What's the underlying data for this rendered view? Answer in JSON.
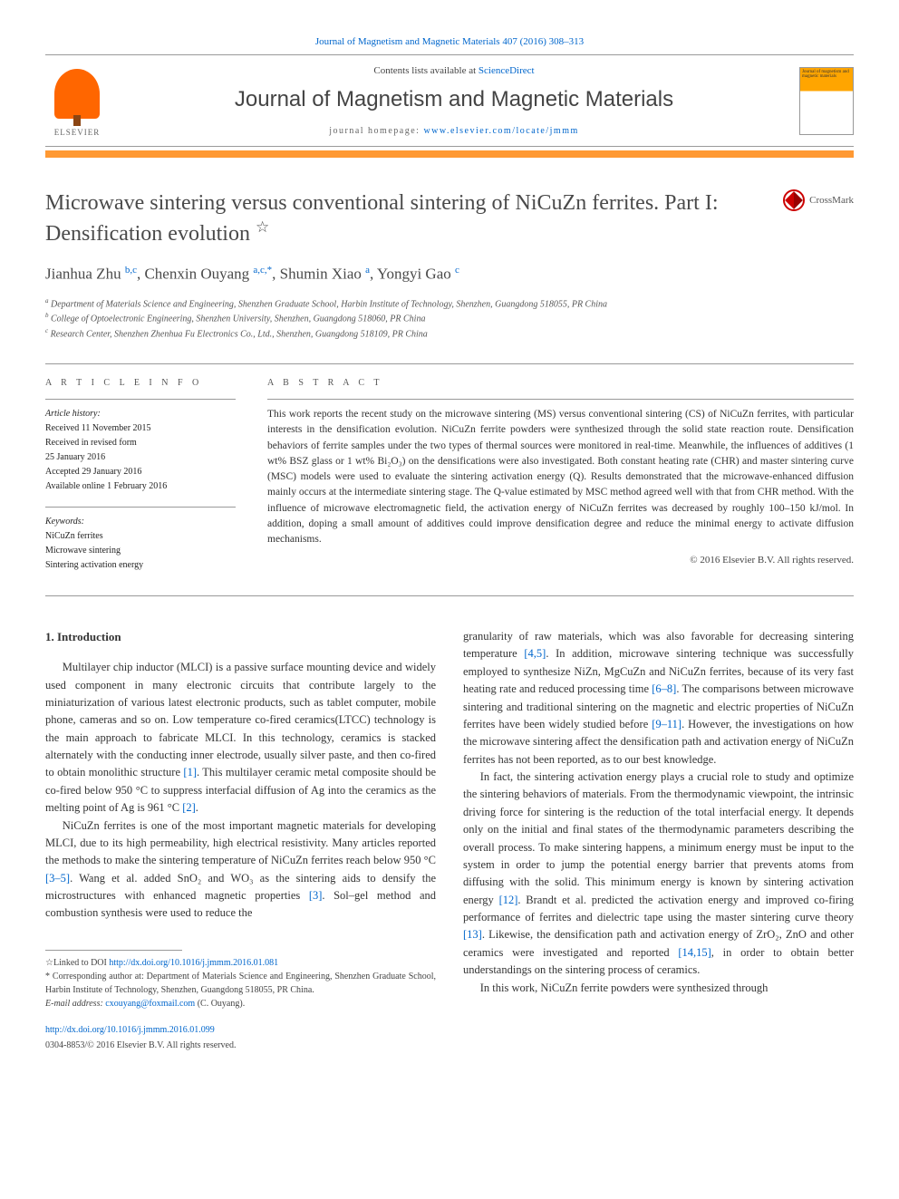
{
  "citation": "Journal of Magnetism and Magnetic Materials 407 (2016) 308–313",
  "header": {
    "contents_prefix": "Contents lists available at ",
    "contents_link": "ScienceDirect",
    "journal_name": "Journal of Magnetism and Magnetic Materials",
    "homepage_prefix": "journal homepage: ",
    "homepage_url": "www.elsevier.com/locate/jmmm",
    "elsevier_label": "ELSEVIER",
    "cover_text": "Journal of magnetism and magnetic materials"
  },
  "title": "Microwave sintering versus conventional sintering of NiCuZn ferrites. Part I: Densification evolution ",
  "title_star": "☆",
  "crossmark_label": "CrossMark",
  "authors_html": "Jianhua Zhu <sup>b,c</sup>, Chenxin Ouyang <sup>a,c,*</sup>, Shumin Xiao <sup>a</sup>, Yongyi Gao <sup>c</sup>",
  "affiliations": {
    "a": "Department of Materials Science and Engineering, Shenzhen Graduate School, Harbin Institute of Technology, Shenzhen, Guangdong 518055, PR China",
    "b": "College of Optoelectronic Engineering, Shenzhen University, Shenzhen, Guangdong 518060, PR China",
    "c": "Research Center, Shenzhen Zhenhua Fu Electronics Co., Ltd., Shenzhen, Guangdong 518109, PR China"
  },
  "info": {
    "header": "A R T I C L E  I N F O",
    "history_label": "Article history:",
    "received": "Received 11 November 2015",
    "revised": "Received in revised form",
    "revised_date": "25 January 2016",
    "accepted": "Accepted 29 January 2016",
    "online": "Available online 1 February 2016",
    "keywords_label": "Keywords:",
    "keywords": [
      "NiCuZn ferrites",
      "Microwave sintering",
      "Sintering activation energy"
    ]
  },
  "abstract": {
    "header": "A B S T R A C T",
    "text": "This work reports the recent study on the microwave sintering (MS) versus conventional sintering (CS) of NiCuZn ferrites, with particular interests in the densification evolution. NiCuZn ferrite powders were synthesized through the solid state reaction route. Densification behaviors of ferrite samples under the two types of thermal sources were monitored in real-time. Meanwhile, the influences of additives (1 wt% BSZ glass or 1 wt% Bi₂O₃) on the densifications were also investigated. Both constant heating rate (CHR) and master sintering curve (MSC) models were used to evaluate the sintering activation energy (Q). Results demonstrated that the microwave-enhanced diffusion mainly occurs at the intermediate sintering stage. The Q-value estimated by MSC method agreed well with that from CHR method. With the influence of microwave electromagnetic field, the activation energy of NiCuZn ferrites was decreased by roughly 100–150 kJ/mol. In addition, doping a small amount of additives could improve densification degree and reduce the minimal energy to activate diffusion mechanisms.",
    "copyright": "© 2016 Elsevier B.V. All rights reserved."
  },
  "section1_heading": "1. Introduction",
  "body": {
    "p1": "Multilayer chip inductor (MLCI) is a passive surface mounting device and widely used component in many electronic circuits that contribute largely to the miniaturization of various latest electronic products, such as tablet computer, mobile phone, cameras and so on. Low temperature co-fired ceramics(LTCC) technology is the main approach to fabricate MLCI. In this technology, ceramics is stacked alternately with the conducting inner electrode, usually silver paste, and then co-fired to obtain monolithic structure ",
    "p1_ref1": "[1]",
    "p1b": ". This multilayer ceramic metal composite should be co-fired below 950 °C to suppress interfacial diffusion of Ag into the ceramics as the melting point of Ag is 961 °C ",
    "p1_ref2": "[2]",
    "p1c": ".",
    "p2": "NiCuZn ferrites is one of the most important magnetic materials for developing MLCI, due to its high permeability, high electrical resistivity. Many articles reported the methods to make the sintering temperature of NiCuZn ferrites reach below 950 °C ",
    "p2_ref1": "[3–5]",
    "p2b": ". Wang et al. added SnO₂ and WO₃ as the sintering aids to densify the microstructures with enhanced magnetic properties ",
    "p2_ref2": "[3]",
    "p2c": ". Sol–gel method and combustion synthesis were used to reduce the",
    "p3": "granularity of raw materials, which was also favorable for decreasing sintering temperature ",
    "p3_ref1": "[4,5]",
    "p3b": ". In addition, microwave sintering technique was successfully employed to synthesize NiZn, MgCuZn and NiCuZn ferrites, because of its very fast heating rate and reduced processing time ",
    "p3_ref2": "[6–8]",
    "p3c": ". The comparisons between microwave sintering and traditional sintering on the magnetic and electric properties of NiCuZn ferrites have been widely studied before ",
    "p3_ref3": "[9–11]",
    "p3d": ". However, the investigations on how the microwave sintering affect the densification path and activation energy of NiCuZn ferrites has not been reported, as to our best knowledge.",
    "p4": "In fact, the sintering activation energy plays a crucial role to study and optimize the sintering behaviors of materials. From the thermodynamic viewpoint, the intrinsic driving force for sintering is the reduction of the total interfacial energy. It depends only on the initial and final states of the thermodynamic parameters describing the overall process. To make sintering happens, a minimum energy must be input to the system in order to jump the potential energy barrier that prevents atoms from diffusing with the solid. This minimum energy is known by sintering activation energy ",
    "p4_ref1": "[12]",
    "p4b": ". Brandt et al. predicted the activation energy and improved co-firing performance of ferrites and dielectric tape using the master sintering curve theory ",
    "p4_ref2": "[13]",
    "p4c": ". Likewise, the densification path and activation energy of ZrO₂, ZnO and other ceramics were investigated and reported ",
    "p4_ref3": "[14,15]",
    "p4d": ", in order to obtain better understandings on the sintering process of ceramics.",
    "p5": "In this work, NiCuZn ferrite powders were synthesized through"
  },
  "footnotes": {
    "linked_prefix": "☆Linked to DOI ",
    "linked_doi": "http://dx.doi.org/10.1016/j.jmmm.2016.01.081",
    "corr": "* Corresponding author at: Department of Materials Science and Engineering, Shenzhen Graduate School, Harbin Institute of Technology, Shenzhen, Guangdong 518055, PR China.",
    "email_label": "E-mail address: ",
    "email": "cxouyang@foxmail.com",
    "email_suffix": " (C. Ouyang)."
  },
  "doi": "http://dx.doi.org/10.1016/j.jmmm.2016.01.099",
  "issn": "0304-8853/© 2016 Elsevier B.V. All rights reserved."
}
